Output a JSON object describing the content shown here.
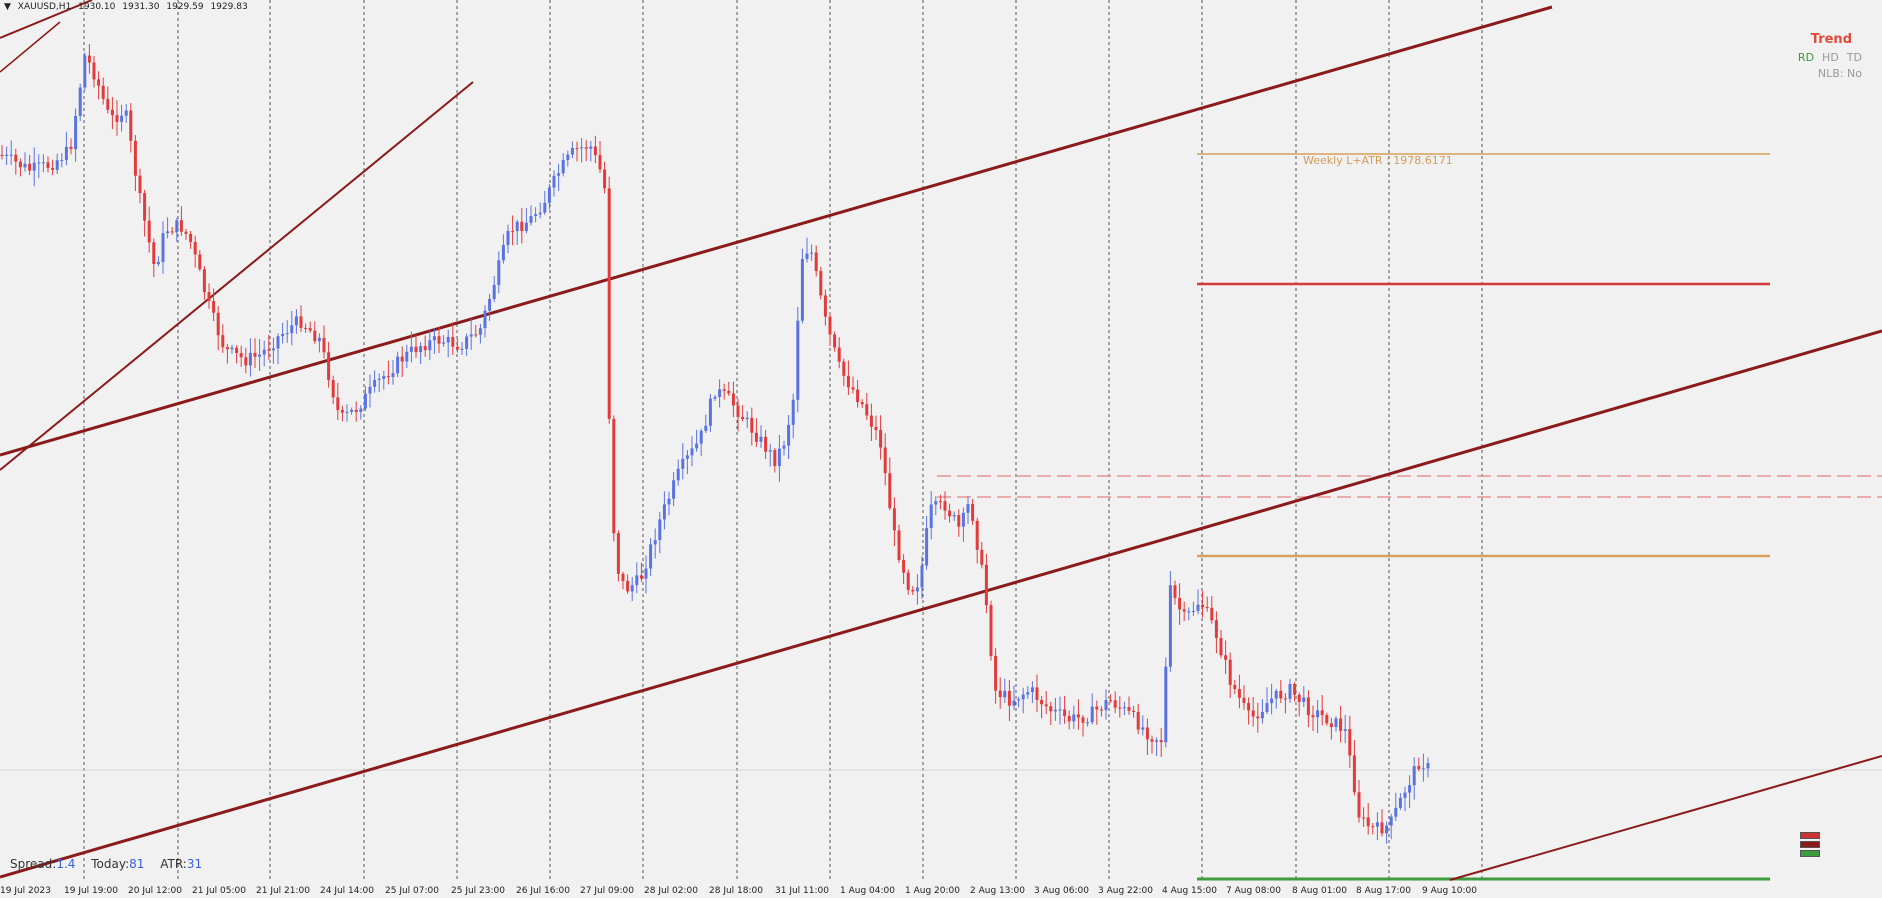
{
  "header": {
    "symbol": "XAUUSD,H1",
    "ohlc": [
      "1930.10",
      "1931.30",
      "1929.59",
      "1929.83"
    ]
  },
  "trend_panel": {
    "title": "Trend",
    "rd": "RD",
    "hd": "HD",
    "td": "TD",
    "nlb": "NLB: No"
  },
  "stats": {
    "spread_label": "Spread:",
    "spread_value": "1.4",
    "today_label": "Today:",
    "today_value": "81",
    "atr_label": "ATR:",
    "atr_value": "31"
  },
  "levels": {
    "weekly_label": "Weekly L+ATR : 1978.6171"
  },
  "time_axis": [
    "19 Jul 2023",
    "19 Jul 19:00",
    "20 Jul 12:00",
    "21 Jul 05:00",
    "21 Jul 21:00",
    "24 Jul 14:00",
    "25 Jul 07:00",
    "25 Jul 23:00",
    "26 Jul 16:00",
    "27 Jul 09:00",
    "28 Jul 02:00",
    "28 Jul 18:00",
    "31 Jul 11:00",
    "1 Aug 04:00",
    "1 Aug 20:00",
    "2 Aug 13:00",
    "3 Aug 06:00",
    "3 Aug 22:00",
    "4 Aug 15:00",
    "7 Aug 08:00",
    "8 Aug 01:00",
    "8 Aug 17:00",
    "9 Aug 10:00"
  ],
  "colors": {
    "bull_candle": "#5a73e0",
    "bear_candle": "#e23b3b",
    "channel_line": "#8b1a1a",
    "level_red": "#d33a3a",
    "level_orange": "#d7a15a",
    "level_green": "#3f9b3f",
    "dashed_level": "#e89595",
    "background": "#f1f1f2"
  },
  "chart_data": {
    "type": "candlestick",
    "series": [
      {
        "name": "XAUUSD,H1",
        "close_path_pixels_note": "",
        "waypoints": [
          [
            0,
            155
          ],
          [
            30,
            170
          ],
          [
            50,
            165
          ],
          [
            70,
            150
          ],
          [
            85,
            55
          ],
          [
            95,
            75
          ],
          [
            110,
            120
          ],
          [
            125,
            110
          ],
          [
            140,
            200
          ],
          [
            155,
            270
          ],
          [
            165,
            230
          ],
          [
            180,
            225
          ],
          [
            190,
            240
          ],
          [
            210,
            310
          ],
          [
            225,
            350
          ],
          [
            245,
            360
          ],
          [
            260,
            355
          ],
          [
            280,
            335
          ],
          [
            300,
            320
          ],
          [
            320,
            340
          ],
          [
            340,
            420
          ],
          [
            355,
            410
          ],
          [
            380,
            380
          ],
          [
            400,
            360
          ],
          [
            420,
            345
          ],
          [
            440,
            340
          ],
          [
            460,
            345
          ],
          [
            480,
            330
          ],
          [
            495,
            280
          ],
          [
            510,
            230
          ],
          [
            530,
            220
          ],
          [
            545,
            200
          ],
          [
            560,
            170
          ],
          [
            575,
            150
          ],
          [
            590,
            145
          ],
          [
            600,
            170
          ],
          [
            605,
            190
          ],
          [
            608,
            385
          ],
          [
            615,
            560
          ],
          [
            625,
            590
          ],
          [
            640,
            580
          ],
          [
            660,
            520
          ],
          [
            680,
            470
          ],
          [
            700,
            440
          ],
          [
            715,
            390
          ],
          [
            730,
            400
          ],
          [
            745,
            420
          ],
          [
            760,
            440
          ],
          [
            775,
            460
          ],
          [
            785,
            440
          ],
          [
            795,
            390
          ],
          [
            800,
            260
          ],
          [
            810,
            245
          ],
          [
            825,
            320
          ],
          [
            840,
            370
          ],
          [
            860,
            400
          ],
          [
            880,
            440
          ],
          [
            895,
            540
          ],
          [
            910,
            590
          ],
          [
            920,
            580
          ],
          [
            930,
            510
          ],
          [
            945,
            505
          ],
          [
            960,
            530
          ],
          [
            970,
            500
          ],
          [
            985,
            590
          ],
          [
            995,
            690
          ],
          [
            1010,
            700
          ],
          [
            1030,
            690
          ],
          [
            1050,
            710
          ],
          [
            1070,
            720
          ],
          [
            1090,
            715
          ],
          [
            1110,
            700
          ],
          [
            1130,
            715
          ],
          [
            1150,
            735
          ],
          [
            1162,
            740
          ],
          [
            1170,
            590
          ],
          [
            1185,
            620
          ],
          [
            1200,
            600
          ],
          [
            1215,
            630
          ],
          [
            1230,
            680
          ],
          [
            1250,
            720
          ],
          [
            1270,
            700
          ],
          [
            1290,
            690
          ],
          [
            1310,
            710
          ],
          [
            1330,
            720
          ],
          [
            1345,
            730
          ],
          [
            1360,
            820
          ],
          [
            1375,
            830
          ],
          [
            1390,
            825
          ],
          [
            1405,
            790
          ],
          [
            1420,
            760
          ],
          [
            1430,
            770
          ]
        ]
      }
    ]
  }
}
